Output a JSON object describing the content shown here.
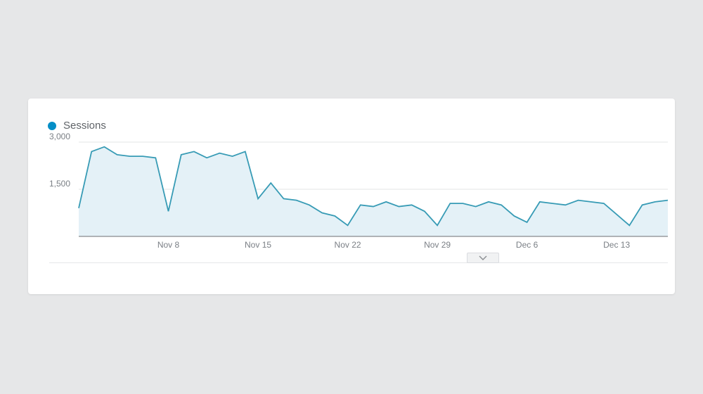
{
  "page": {
    "background_color": "#e6e7e8",
    "card_background": "#ffffff"
  },
  "chart": {
    "type": "area",
    "series_name": "Sessions",
    "legend_dot_color": "#058ec6",
    "legend_text_color": "#5f6368",
    "line_color": "#379bb5",
    "area_fill": "#e4f1f7",
    "axis_color": "#888a8d",
    "gridline_color": "#e3e4e6",
    "tick_text_color": "#7a7f85",
    "line_width": 1.8,
    "ylim": [
      0,
      3000
    ],
    "yticks": [
      {
        "value": 1500,
        "label": "1,500"
      },
      {
        "value": 3000,
        "label": "3,000"
      }
    ],
    "x_labels": [
      {
        "index": 7,
        "label": "Nov 8"
      },
      {
        "index": 14,
        "label": "Nov 15"
      },
      {
        "index": 21,
        "label": "Nov 22"
      },
      {
        "index": 28,
        "label": "Nov 29"
      },
      {
        "index": 35,
        "label": "Dec 6"
      },
      {
        "index": 42,
        "label": "Dec 13"
      }
    ],
    "values": [
      900,
      2700,
      2850,
      2600,
      2550,
      2550,
      2500,
      800,
      2600,
      2700,
      2500,
      2650,
      2550,
      2700,
      1200,
      1700,
      1200,
      1150,
      1000,
      750,
      650,
      350,
      1000,
      950,
      1100,
      950,
      1000,
      800,
      350,
      1050,
      1050,
      950,
      1100,
      1000,
      650,
      450,
      1100,
      1050,
      1000,
      1150,
      1100,
      1050,
      700,
      350,
      1000,
      1100,
      1150
    ]
  },
  "controls": {
    "expand_icon": "chevron-down"
  }
}
